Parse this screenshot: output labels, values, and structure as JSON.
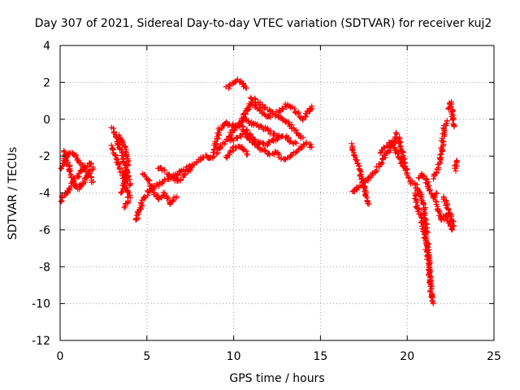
{
  "chart_data": {
    "type": "scatter",
    "title": "Day 307 of 2021, Sidereal Day-to-day VTEC variation (SDTVAR) for receiver kuj2",
    "xlabel": "GPS time / hours",
    "ylabel": "SDTVAR / TECUs",
    "xlim": [
      0,
      25
    ],
    "ylim": [
      -12,
      4
    ],
    "xticks": [
      "0",
      "5",
      "10",
      "15",
      "20",
      "25"
    ],
    "yticks": [
      "-12",
      "-10",
      "-8",
      "-6",
      "-4",
      "-2",
      "0",
      "2",
      "4"
    ],
    "grid": true,
    "marker": "plus",
    "color": "#ff0000",
    "tracks": [
      [
        [
          0.0,
          -2.8
        ],
        [
          0.3,
          -2.0
        ],
        [
          0.7,
          -1.8
        ],
        [
          1.0,
          -2.2
        ],
        [
          1.3,
          -2.6
        ],
        [
          1.6,
          -3.0
        ],
        [
          1.9,
          -3.4
        ]
      ],
      [
        [
          0.0,
          -4.4
        ],
        [
          0.4,
          -4.0
        ],
        [
          0.8,
          -3.3
        ],
        [
          1.2,
          -2.8
        ],
        [
          1.5,
          -2.5
        ],
        [
          1.8,
          -2.4
        ]
      ],
      [
        [
          0.2,
          -1.7
        ],
        [
          0.5,
          -2.6
        ],
        [
          0.8,
          -3.5
        ],
        [
          1.1,
          -3.8
        ],
        [
          1.4,
          -3.3
        ],
        [
          1.7,
          -2.8
        ],
        [
          1.9,
          -2.6
        ]
      ],
      [
        [
          3.0,
          -0.5
        ],
        [
          3.3,
          -1.2
        ],
        [
          3.6,
          -2.0
        ],
        [
          3.8,
          -2.8
        ],
        [
          4.0,
          -3.6
        ]
      ],
      [
        [
          3.0,
          -1.5
        ],
        [
          3.3,
          -2.3
        ],
        [
          3.6,
          -3.0
        ],
        [
          3.8,
          -3.8
        ],
        [
          4.0,
          -4.2
        ],
        [
          3.7,
          -4.8
        ]
      ],
      [
        [
          3.4,
          -0.9
        ],
        [
          3.6,
          -1.3
        ],
        [
          3.8,
          -1.6
        ],
        [
          3.9,
          -2.2
        ],
        [
          3.7,
          -3.4
        ],
        [
          3.5,
          -4.0
        ]
      ],
      [
        [
          4.4,
          -5.5
        ],
        [
          4.6,
          -4.8
        ],
        [
          4.9,
          -4.2
        ],
        [
          5.2,
          -3.8
        ],
        [
          5.5,
          -3.6
        ],
        [
          5.9,
          -3.4
        ],
        [
          6.3,
          -3.2
        ],
        [
          6.7,
          -3.0
        ],
        [
          7.1,
          -2.8
        ],
        [
          7.5,
          -2.5
        ],
        [
          8.0,
          -2.2
        ],
        [
          8.4,
          -2.0
        ],
        [
          8.8,
          -2.1
        ]
      ],
      [
        [
          4.8,
          -3.0
        ],
        [
          5.1,
          -3.3
        ],
        [
          5.4,
          -3.9
        ],
        [
          5.7,
          -4.4
        ],
        [
          6.0,
          -4.0
        ],
        [
          6.4,
          -4.6
        ],
        [
          6.7,
          -4.2
        ]
      ],
      [
        [
          5.6,
          -2.6
        ],
        [
          6.0,
          -2.8
        ],
        [
          6.4,
          -3.1
        ],
        [
          6.8,
          -3.4
        ],
        [
          7.2,
          -3.0
        ],
        [
          7.6,
          -2.6
        ]
      ],
      [
        [
          8.8,
          -2.0
        ],
        [
          9.0,
          -1.2
        ],
        [
          9.2,
          -0.5
        ],
        [
          9.5,
          -0.2
        ],
        [
          9.8,
          -0.3
        ],
        [
          10.1,
          -0.4
        ],
        [
          10.4,
          -0.3
        ],
        [
          10.7,
          -0.8
        ],
        [
          11.0,
          -1.2
        ],
        [
          11.3,
          -1.4
        ],
        [
          11.7,
          -1.7
        ],
        [
          12.0,
          -1.9
        ],
        [
          12.4,
          -1.8
        ],
        [
          12.7,
          -2.1
        ],
        [
          13.0,
          -2.2
        ],
        [
          13.4,
          -1.9
        ],
        [
          13.8,
          -1.6
        ],
        [
          14.2,
          -1.3
        ],
        [
          14.5,
          -1.5
        ]
      ],
      [
        [
          9.0,
          -1.8
        ],
        [
          9.3,
          -1.4
        ],
        [
          9.7,
          -1.0
        ],
        [
          10.0,
          -0.6
        ],
        [
          10.3,
          -0.2
        ],
        [
          10.6,
          0.0
        ],
        [
          10.9,
          -0.2
        ],
        [
          11.3,
          -0.3
        ],
        [
          11.6,
          -0.4
        ],
        [
          12.0,
          -0.6
        ],
        [
          12.3,
          -0.8
        ],
        [
          12.6,
          -0.9
        ],
        [
          13.0,
          -1.0
        ],
        [
          13.3,
          -1.2
        ],
        [
          13.6,
          -1.3
        ]
      ],
      [
        [
          9.8,
          -1.2
        ],
        [
          10.2,
          -1.0
        ],
        [
          10.5,
          -0.8
        ],
        [
          10.8,
          -0.6
        ],
        [
          11.1,
          -1.1
        ],
        [
          11.5,
          -1.3
        ],
        [
          11.9,
          -1.4
        ],
        [
          12.2,
          -1.2
        ],
        [
          12.6,
          -1.0
        ]
      ],
      [
        [
          9.6,
          -2.1
        ],
        [
          9.9,
          -1.7
        ],
        [
          10.2,
          -1.4
        ],
        [
          10.5,
          -1.6
        ],
        [
          10.8,
          -1.9
        ]
      ],
      [
        [
          9.6,
          1.7
        ],
        [
          9.9,
          1.9
        ],
        [
          10.2,
          2.1
        ],
        [
          10.5,
          2.0
        ],
        [
          10.7,
          1.7
        ]
      ],
      [
        [
          10.4,
          -0.1
        ],
        [
          10.6,
          0.2
        ],
        [
          10.8,
          0.5
        ],
        [
          11.0,
          0.9
        ],
        [
          11.3,
          0.7
        ],
        [
          11.6,
          0.4
        ],
        [
          11.9,
          0.2
        ],
        [
          12.1,
          0.1
        ]
      ],
      [
        [
          11.0,
          1.2
        ],
        [
          11.3,
          1.0
        ],
        [
          11.6,
          0.8
        ],
        [
          11.9,
          0.6
        ],
        [
          12.2,
          0.4
        ],
        [
          12.5,
          0.2
        ],
        [
          12.8,
          0.0
        ],
        [
          13.1,
          -0.2
        ],
        [
          13.4,
          -0.5
        ],
        [
          13.7,
          -0.8
        ],
        [
          14.0,
          -1.0
        ]
      ],
      [
        [
          12.5,
          0.4
        ],
        [
          12.8,
          0.6
        ],
        [
          13.1,
          0.8
        ],
        [
          13.4,
          0.6
        ],
        [
          13.7,
          0.3
        ],
        [
          14.0,
          0.0
        ],
        [
          14.3,
          0.4
        ],
        [
          14.5,
          0.7
        ]
      ],
      [
        [
          16.8,
          -1.4
        ],
        [
          17.0,
          -2.0
        ],
        [
          17.2,
          -2.6
        ],
        [
          17.4,
          -3.3
        ],
        [
          17.6,
          -4.0
        ],
        [
          17.8,
          -4.6
        ]
      ],
      [
        [
          16.8,
          -4.0
        ],
        [
          17.1,
          -3.8
        ],
        [
          17.4,
          -3.5
        ],
        [
          17.7,
          -3.3
        ],
        [
          18.0,
          -3.0
        ],
        [
          18.3,
          -2.6
        ],
        [
          18.6,
          -2.2
        ],
        [
          18.9,
          -1.8
        ],
        [
          19.2,
          -1.3
        ],
        [
          19.4,
          -0.8
        ],
        [
          19.6,
          -1.4
        ],
        [
          19.8,
          -2.2
        ],
        [
          20.0,
          -3.0
        ],
        [
          20.2,
          -3.5
        ]
      ],
      [
        [
          18.5,
          -1.8
        ],
        [
          18.8,
          -1.4
        ],
        [
          19.1,
          -1.2
        ],
        [
          19.3,
          -1.6
        ],
        [
          19.5,
          -2.0
        ],
        [
          19.8,
          -2.6
        ]
      ],
      [
        [
          20.3,
          -3.4
        ],
        [
          20.5,
          -3.6
        ],
        [
          20.7,
          -4.0
        ],
        [
          20.9,
          -4.4
        ],
        [
          21.0,
          -5.0
        ],
        [
          21.1,
          -6.0
        ],
        [
          21.2,
          -7.0
        ],
        [
          21.3,
          -8.5
        ],
        [
          21.4,
          -9.5
        ],
        [
          21.5,
          -10.0
        ]
      ],
      [
        [
          20.4,
          -4.0
        ],
        [
          20.6,
          -4.8
        ],
        [
          20.8,
          -5.4
        ],
        [
          21.0,
          -6.2
        ],
        [
          21.2,
          -7.6
        ],
        [
          21.4,
          -9.2
        ]
      ],
      [
        [
          20.7,
          -3.2
        ],
        [
          20.9,
          -3.0
        ],
        [
          21.1,
          -3.3
        ],
        [
          21.3,
          -3.8
        ],
        [
          21.5,
          -4.3
        ],
        [
          21.7,
          -4.0
        ]
      ],
      [
        [
          21.5,
          -3.2
        ],
        [
          21.7,
          -2.8
        ],
        [
          21.9,
          -2.2
        ],
        [
          22.0,
          -1.5
        ],
        [
          22.1,
          -0.8
        ],
        [
          22.2,
          -0.3
        ],
        [
          22.3,
          -0.1
        ]
      ],
      [
        [
          21.6,
          -4.5
        ],
        [
          21.8,
          -5.0
        ],
        [
          22.0,
          -5.5
        ],
        [
          22.2,
          -5.2
        ],
        [
          22.4,
          -5.6
        ],
        [
          22.6,
          -6.0
        ]
      ],
      [
        [
          22.1,
          -4.2
        ],
        [
          22.3,
          -4.8
        ],
        [
          22.5,
          -5.3
        ],
        [
          22.7,
          -5.8
        ]
      ],
      [
        [
          22.4,
          0.6
        ],
        [
          22.5,
          0.9
        ],
        [
          22.6,
          0.5
        ],
        [
          22.7,
          -0.4
        ]
      ],
      [
        [
          22.8,
          -2.2
        ],
        [
          22.8,
          -2.8
        ]
      ]
    ]
  }
}
